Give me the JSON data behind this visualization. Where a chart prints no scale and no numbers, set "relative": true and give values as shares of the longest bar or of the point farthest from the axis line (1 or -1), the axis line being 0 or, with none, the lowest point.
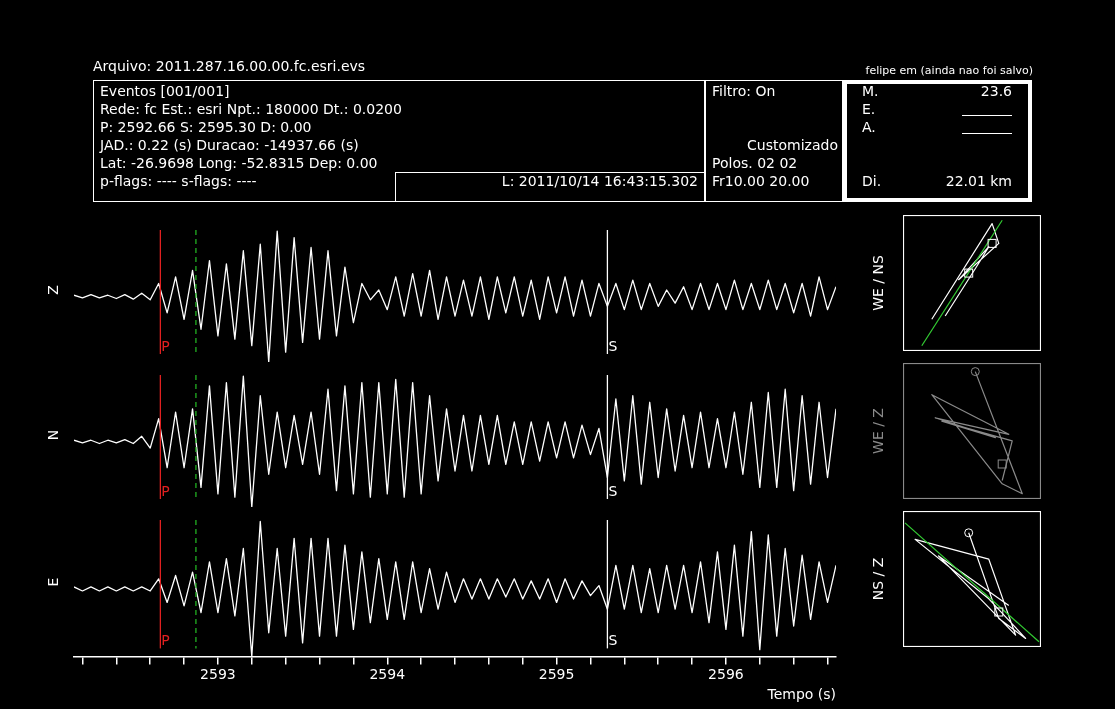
{
  "chart_data": [
    {
      "type": "other",
      "title": "Arquivo: 2011.287.16.00.00.fc.esri.evs",
      "annotations": [
        "felipe em (ainda nao foi salvo)",
        "Eventos [001/001]",
        "Rede: fc Est.: esri Npt.: 180000 Dt.: 0.0200",
        "P: 2592.66 S: 2595.30 D: 0.00",
        "JAD.: 0.22 (s) Duracao: -14937.66 (s)",
        "Lat: -26.9698 Long: -52.8315 Dep: 0.00",
        "p-flags: ---- s-flags: ----",
        "L: 2011/10/14 16:43:15.302",
        "Filtro: On",
        "Customizado",
        "Polos.  02 02",
        "Fr10.00 20.00",
        "M.",
        "23.6",
        "E.",
        "A.",
        "Di.",
        "22.01 km"
      ]
    },
    {
      "type": "line",
      "ylabel": "Z",
      "relative": true,
      "marker": "none",
      "tick_labels": false,
      "categories": [
        null,
        null,
        null,
        null,
        null,
        null,
        null,
        null,
        null,
        null,
        null,
        null,
        null,
        null,
        null,
        null,
        null,
        null,
        null,
        null,
        null,
        null,
        null,
        null,
        null,
        null,
        null,
        null,
        null,
        null,
        null,
        null,
        null,
        null,
        null,
        null,
        null,
        null,
        null,
        null,
        null,
        null,
        null,
        null,
        null,
        null,
        null,
        null,
        null,
        null,
        null,
        null,
        null,
        null,
        null,
        null,
        null,
        null,
        null,
        null,
        null,
        null,
        null,
        null,
        null,
        null,
        null,
        null,
        null,
        null,
        null,
        null,
        null,
        null,
        null,
        null,
        null,
        null,
        null,
        null,
        null,
        null,
        null,
        null,
        null,
        null,
        null,
        null,
        null,
        null,
        null
      ],
      "series": [
        {
          "color": "#ffffff",
          "values": [
            0.51,
            0.49,
            0.515,
            0.49,
            0.51,
            0.485,
            0.515,
            0.48,
            0.525,
            0.475,
            0.6,
            0.375,
            0.65,
            0.325,
            0.7,
            0.25,
            0.775,
            0.2,
            0.75,
            0.175,
            0.85,
            0.125,
            0.9,
            0,
            1,
            0.075,
            0.95,
            0.15,
            0.875,
            0.175,
            0.85,
            0.2,
            0.725,
            0.3,
            0.6,
            0.475,
            0.55,
            0.4,
            0.65,
            0.35,
            0.675,
            0.35,
            0.7,
            0.325,
            0.65,
            0.35,
            0.625,
            0.35,
            0.65,
            0.325,
            0.65,
            0.375,
            0.65,
            0.35,
            0.625,
            0.325,
            0.65,
            0.375,
            0.65,
            0.35,
            0.625,
            0.35,
            0.6,
            0.425,
            0.6,
            0.4,
            0.625,
            0.4,
            0.6,
            0.425,
            0.55,
            0.45,
            0.575,
            0.4,
            0.6,
            0.4,
            0.6,
            0.4,
            0.625,
            0.4,
            0.6,
            0.4,
            0.625,
            0.4,
            0.6,
            0.375,
            0.6,
            0.35,
            0.65,
            0.4,
            0.575
          ]
        }
      ]
    },
    {
      "type": "line",
      "ylabel": "N",
      "relative": true,
      "marker": "none",
      "tick_labels": false,
      "categories": [
        null,
        null,
        null,
        null,
        null,
        null,
        null,
        null,
        null,
        null,
        null,
        null,
        null,
        null,
        null,
        null,
        null,
        null,
        null,
        null,
        null,
        null,
        null,
        null,
        null,
        null,
        null,
        null,
        null,
        null,
        null,
        null,
        null,
        null,
        null,
        null,
        null,
        null,
        null,
        null,
        null,
        null,
        null,
        null,
        null,
        null,
        null,
        null,
        null,
        null,
        null,
        null,
        null,
        null,
        null,
        null,
        null,
        null,
        null,
        null,
        null,
        null,
        null,
        null,
        null,
        null,
        null,
        null,
        null,
        null,
        null,
        null,
        null,
        null,
        null,
        null,
        null,
        null,
        null,
        null,
        null,
        null,
        null,
        null,
        null,
        null,
        null,
        null,
        null,
        null,
        null
      ],
      "series": [
        {
          "color": "#ffffff",
          "values": [
            0.51,
            0.49,
            0.51,
            0.485,
            0.51,
            0.49,
            0.515,
            0.485,
            0.54,
            0.45,
            0.675,
            0.3,
            0.725,
            0.3,
            0.75,
            0.15,
            0.925,
            0.1,
            0.95,
            0.075,
            1,
            0,
            0.85,
            0.25,
            0.725,
            0.3,
            0.7,
            0.325,
            0.725,
            0.25,
            0.9,
            0.125,
            0.925,
            0.1,
            0.95,
            0.075,
            0.95,
            0.1,
            0.975,
            0.075,
            0.95,
            0.1,
            0.85,
            0.2,
            0.75,
            0.275,
            0.7,
            0.275,
            0.7,
            0.325,
            0.7,
            0.325,
            0.65,
            0.325,
            0.65,
            0.35,
            0.65,
            0.375,
            0.65,
            0.375,
            0.625,
            0.4,
            0.6,
            0.225,
            0.825,
            0.2,
            0.85,
            0.175,
            0.8,
            0.225,
            0.75,
            0.275,
            0.7,
            0.3,
            0.725,
            0.3,
            0.675,
            0.3,
            0.725,
            0.25,
            0.8,
            0.15,
            0.875,
            0.15,
            0.9,
            0.125,
            0.85,
            0.175,
            0.8,
            0.225,
            0.75
          ]
        }
      ]
    },
    {
      "type": "line",
      "ylabel": "E",
      "xlabel": "Tempo (s)",
      "relative": true,
      "marker": "none",
      "tick_labels": "x",
      "xlim": [
        2592.15,
        2596.65
      ],
      "xticks": [
        {
          "value": 2592.2,
          "label": null
        },
        {
          "value": 2592.4,
          "label": null
        },
        {
          "value": 2592.6,
          "label": null
        },
        {
          "value": 2592.8,
          "label": null
        },
        2593,
        {
          "value": 2593.2,
          "label": null
        },
        {
          "value": 2593.4,
          "label": null
        },
        {
          "value": 2593.6,
          "label": null
        },
        {
          "value": 2593.8,
          "label": null
        },
        2594,
        {
          "value": 2594.2,
          "label": null
        },
        {
          "value": 2594.4,
          "label": null
        },
        {
          "value": 2594.6,
          "label": null
        },
        {
          "value": 2594.8,
          "label": null
        },
        2595,
        {
          "value": 2595.2,
          "label": null
        },
        {
          "value": 2595.4,
          "label": null
        },
        {
          "value": 2595.6,
          "label": null
        },
        {
          "value": 2595.8,
          "label": null
        },
        2596,
        {
          "value": 2596.2,
          "label": null
        },
        {
          "value": 2596.4,
          "label": null
        },
        {
          "value": 2596.6,
          "label": null
        }
      ],
      "x": [
        2592.15,
        2592.2,
        2592.25,
        2592.3,
        2592.35,
        2592.4,
        2592.45,
        2592.5,
        2592.55,
        2592.6,
        2592.65,
        2592.7,
        2592.75,
        2592.8,
        2592.85,
        2592.9,
        2592.95,
        2593.0,
        2593.05,
        2593.1,
        2593.15,
        2593.2,
        2593.25,
        2593.3,
        2593.35,
        2593.4,
        2593.45,
        2593.5,
        2593.55,
        2593.6,
        2593.65,
        2593.7,
        2593.75,
        2593.8,
        2593.85,
        2593.9,
        2593.95,
        2594.0,
        2594.05,
        2594.1,
        2594.15,
        2594.2,
        2594.25,
        2594.3,
        2594.35,
        2594.4,
        2594.45,
        2594.5,
        2594.55,
        2594.6,
        2594.65,
        2594.7,
        2594.75,
        2594.8,
        2594.85,
        2594.9,
        2594.95,
        2595.0,
        2595.05,
        2595.1,
        2595.15,
        2595.2,
        2595.25,
        2595.3,
        2595.35,
        2595.4,
        2595.45,
        2595.5,
        2595.55,
        2595.6,
        2595.65,
        2595.7,
        2595.75,
        2595.8,
        2595.85,
        2595.9,
        2595.95,
        2596.0,
        2596.05,
        2596.1,
        2596.15,
        2596.2,
        2596.25,
        2596.3,
        2596.35,
        2596.4,
        2596.45,
        2596.5,
        2596.55,
        2596.6,
        2596.65
      ],
      "series": [
        {
          "color": "#ffffff",
          "values": [
            0.515,
            0.485,
            0.515,
            0.485,
            0.515,
            0.485,
            0.515,
            0.485,
            0.515,
            0.485,
            0.575,
            0.4,
            0.6,
            0.375,
            0.625,
            0.325,
            0.7,
            0.325,
            0.725,
            0.3,
            0.8,
            0,
            1,
            0.175,
            0.8,
            0.15,
            0.875,
            0.1,
            0.875,
            0.15,
            0.875,
            0.15,
            0.825,
            0.2,
            0.775,
            0.25,
            0.725,
            0.275,
            0.7,
            0.275,
            0.7,
            0.325,
            0.65,
            0.35,
            0.625,
            0.4,
            0.575,
            0.425,
            0.575,
            0.425,
            0.575,
            0.44,
            0.575,
            0.425,
            0.56,
            0.425,
            0.575,
            0.4,
            0.575,
            0.425,
            0.56,
            0.45,
            0.525,
            0.35,
            0.675,
            0.35,
            0.675,
            0.325,
            0.65,
            0.325,
            0.675,
            0.35,
            0.675,
            0.325,
            0.7,
            0.25,
            0.775,
            0.2,
            0.825,
            0.15,
            0.925,
            0.05,
            0.9,
            0.15,
            0.8,
            0.225,
            0.75,
            0.275,
            0.7,
            0.4,
            0.675
          ]
        }
      ],
      "ref_lines": [
        {
          "axis": "x",
          "value": 2592.66,
          "label": "P",
          "color": "#e02020"
        },
        {
          "axis": "x",
          "value": 2592.87,
          "color": "#22b022",
          "line_style": "dashed"
        },
        {
          "axis": "x",
          "value": 2595.3,
          "label": "S",
          "color": "#ffffff"
        }
      ]
    },
    {
      "type": "other",
      "ylabel": "WE / NS"
    },
    {
      "type": "other",
      "ylabel": "WE / Z"
    },
    {
      "type": "other",
      "ylabel": "NS / Z"
    }
  ]
}
